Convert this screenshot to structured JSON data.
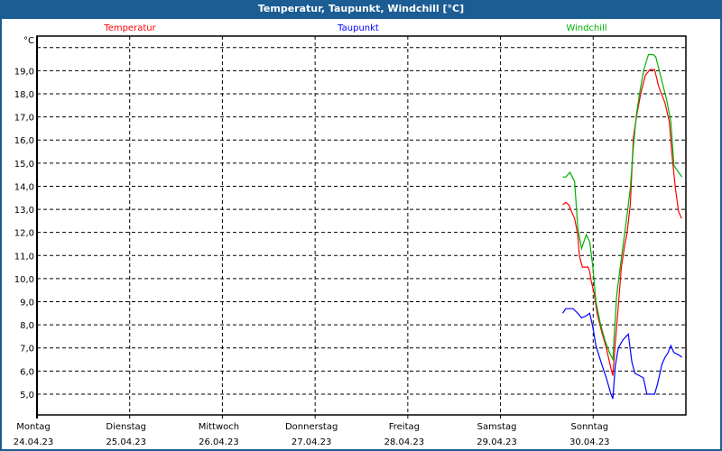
{
  "window": {
    "title": "Temperatur, Taupunkt, Windchill [°C]"
  },
  "chart_data": {
    "type": "line",
    "title": "Temperatur, Taupunkt, Windchill [°C]",
    "ylabel": "°C",
    "ylim": [
      4.1,
      20.5
    ],
    "yticks": [
      5,
      6,
      7,
      8,
      9,
      10,
      11,
      12,
      13,
      14,
      15,
      16,
      17,
      18,
      19
    ],
    "ytick_labels": [
      "5,0",
      "6,0",
      "7,0",
      "8,0",
      "9,0",
      "10,0",
      "11,0",
      "12,0",
      "13,0",
      "14,0",
      "15,0",
      "16,0",
      "17,0",
      "18,0",
      "19,0"
    ],
    "x_unit": "hours since Montag 24.04.23 00:00",
    "xlim": [
      0,
      168
    ],
    "days": [
      {
        "name": "Montag",
        "date": "24.04.23"
      },
      {
        "name": "Dienstag",
        "date": "25.04.23"
      },
      {
        "name": "Mittwoch",
        "date": "26.04.23"
      },
      {
        "name": "Donnerstag",
        "date": "27.04.23"
      },
      {
        "name": "Freitag",
        "date": "28.04.23"
      },
      {
        "name": "Samstag",
        "date": "29.04.23"
      },
      {
        "name": "Sonntag",
        "date": "30.04.23"
      }
    ],
    "grid": true,
    "series": [
      {
        "name": "Temperatur",
        "color": "#ff0000",
        "x": [
          136.1,
          136.9,
          137.7,
          138.4,
          139.2,
          140.0,
          140.4,
          141.2,
          141.9,
          142.7,
          143.1,
          143.5,
          144.3,
          145.0,
          146.2,
          147.4,
          148.6,
          149.1,
          149.7,
          150.5,
          151.3,
          152.1,
          152.8,
          153.6,
          154.4,
          155.2,
          156.3,
          157.5,
          158.7,
          159.9,
          161.0,
          162.6,
          163.7,
          164.5,
          165.3,
          166.1,
          166.9
        ],
        "y": [
          13.2,
          13.3,
          13.2,
          12.9,
          12.6,
          11.9,
          11.0,
          10.5,
          10.5,
          10.5,
          10.3,
          9.9,
          9.3,
          8.5,
          7.7,
          7.0,
          6.1,
          5.8,
          7.2,
          8.8,
          10.5,
          11.4,
          12.0,
          13.2,
          16.1,
          17.0,
          18.0,
          18.8,
          19.05,
          19.05,
          18.3,
          17.6,
          16.8,
          15.2,
          13.9,
          12.9,
          12.6
        ]
      },
      {
        "name": "Taupunkt",
        "color": "#0000ff",
        "x": [
          136.1,
          136.9,
          138.8,
          140.0,
          141.0,
          142.3,
          143.1,
          143.9,
          144.7,
          146.2,
          147.4,
          148.6,
          149.1,
          149.7,
          150.5,
          151.7,
          153.1,
          154.0,
          154.8,
          156.0,
          157.0,
          157.9,
          159.9,
          160.6,
          161.8,
          162.6,
          163.4,
          164.1,
          164.9,
          166.1,
          167.0
        ],
        "y": [
          8.5,
          8.7,
          8.7,
          8.5,
          8.3,
          8.4,
          8.5,
          7.9,
          7.1,
          6.3,
          5.7,
          5.0,
          4.8,
          6.2,
          7.0,
          7.35,
          7.6,
          6.4,
          5.9,
          5.8,
          5.7,
          5.0,
          5.0,
          5.4,
          6.3,
          6.6,
          6.8,
          7.1,
          6.8,
          6.7,
          6.6
        ]
      },
      {
        "name": "Windchill",
        "color": "#00b000",
        "x": [
          136.1,
          136.9,
          138.0,
          139.2,
          140.0,
          141.0,
          142.2,
          143.1,
          143.9,
          144.7,
          145.8,
          147.0,
          148.2,
          149.1,
          149.5,
          150.1,
          151.3,
          152.5,
          153.6,
          154.4,
          155.2,
          156.0,
          157.1,
          158.3,
          159.5,
          160.2,
          161.4,
          163.0,
          164.1,
          164.9,
          166.1,
          167.0
        ],
        "y": [
          14.4,
          14.4,
          14.6,
          14.2,
          12.2,
          11.3,
          11.9,
          11.6,
          10.5,
          9.0,
          8.1,
          7.35,
          6.8,
          6.5,
          7.7,
          9.3,
          10.9,
          12.4,
          13.9,
          15.7,
          17.1,
          18.0,
          19.05,
          19.7,
          19.7,
          19.6,
          18.8,
          17.75,
          16.8,
          14.9,
          14.6,
          14.4
        ]
      }
    ]
  }
}
